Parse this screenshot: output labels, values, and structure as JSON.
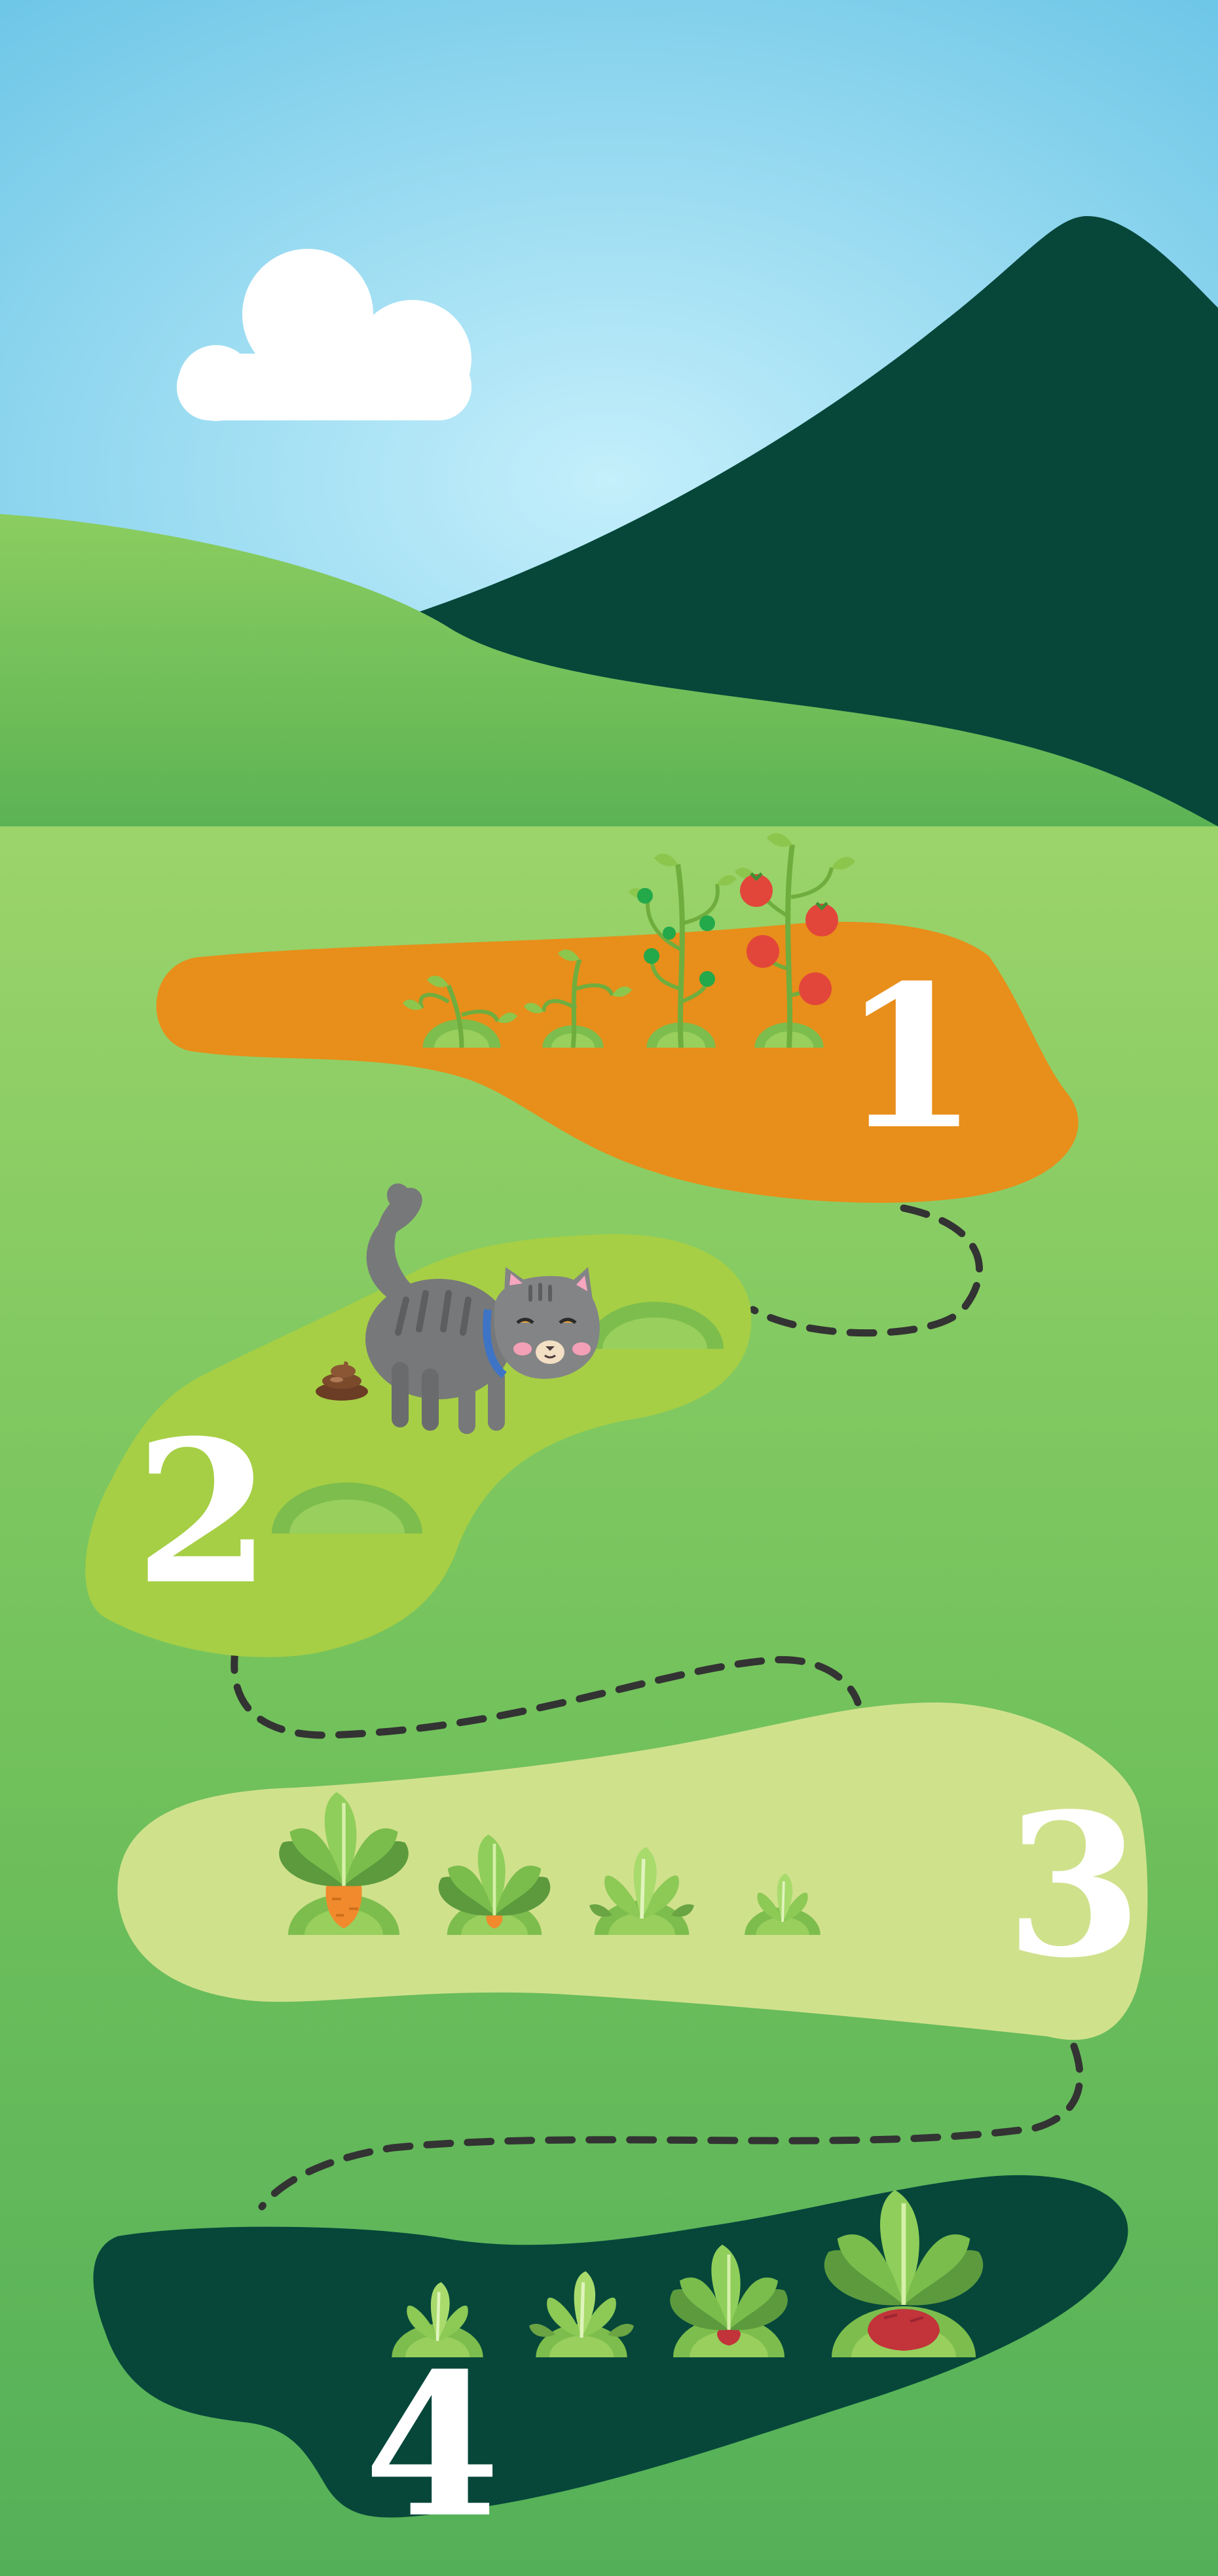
{
  "steps": [
    {
      "number": "1",
      "color": "#e88e1a"
    },
    {
      "number": "2",
      "color": "#a6cf45"
    },
    {
      "number": "3",
      "color": "#d0e18c"
    },
    {
      "number": "4",
      "color": "#06473a"
    }
  ],
  "palette": {
    "sky_center": "#c4effb",
    "sky_edge": "#6fc7e7",
    "mountain": "#06473a",
    "hill": "#6fbe53",
    "meadow": "#8fcf62",
    "mound": "#7dbd4d",
    "path": "#333333"
  },
  "icons": [
    "cloud-icon",
    "mountain-icon",
    "tomato-plant-icon",
    "cat-icon",
    "poop-icon",
    "carrot-icon",
    "beet-icon",
    "dirt-mound-icon"
  ]
}
